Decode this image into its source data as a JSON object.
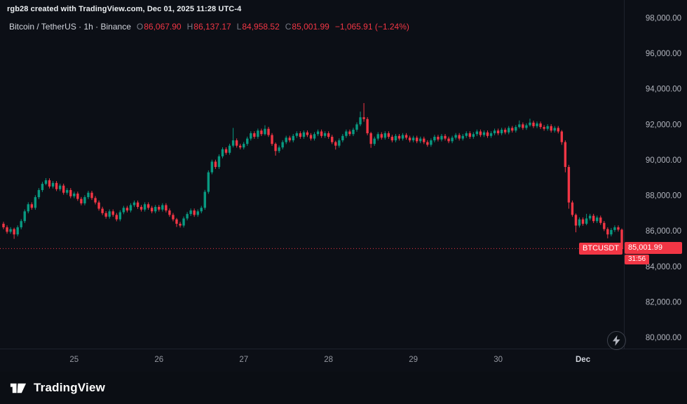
{
  "watermark": "rgb28 created with TradingView.com, Dec 01, 2025 11:28 UTC-4",
  "legend": {
    "title": "Bitcoin / TetherUS · 1h · Binance",
    "ohlc": [
      {
        "label": "O",
        "value": "86,067.90"
      },
      {
        "label": "H",
        "value": "86,137.17"
      },
      {
        "label": "L",
        "value": "84,958.52"
      },
      {
        "label": "C",
        "value": "85,001.99"
      }
    ],
    "change": "−1,065.91 (−1.24%)"
  },
  "price_tag": {
    "symbol": "BTCUSDT",
    "price": "85,001.99",
    "countdown": "31:56",
    "value": 85001.99
  },
  "price_scale": {
    "ticks": [
      {
        "value": 98000,
        "label": "98,000.00"
      },
      {
        "value": 96000,
        "label": "96,000.00"
      },
      {
        "value": 94000,
        "label": "94,000.00"
      },
      {
        "value": 92000,
        "label": "92,000.00"
      },
      {
        "value": 90000,
        "label": "90,000.00"
      },
      {
        "value": 88000,
        "label": "88,000.00"
      },
      {
        "value": 86000,
        "label": "86,000.00"
      },
      {
        "value": 84000,
        "label": "84,000.00"
      },
      {
        "value": 82000,
        "label": "82,000.00"
      },
      {
        "value": 80000,
        "label": "80,000.00"
      }
    ]
  },
  "time_scale": {
    "labels": [
      {
        "text": "25",
        "index": 20,
        "major": false
      },
      {
        "text": "26",
        "index": 44,
        "major": false
      },
      {
        "text": "27",
        "index": 68,
        "major": false
      },
      {
        "text": "28",
        "index": 92,
        "major": false
      },
      {
        "text": "29",
        "index": 116,
        "major": false
      },
      {
        "text": "30",
        "index": 140,
        "major": false
      },
      {
        "text": "Dec",
        "index": 164,
        "major": true
      }
    ]
  },
  "footer": {
    "brand": "TradingView"
  },
  "colors": {
    "up": "#089981",
    "down": "#f23645",
    "text": "#b2b5be",
    "text_dim": "#9598a1",
    "text_bright": "#d1d4dc",
    "divider": "#1e222d",
    "bg": "#0c0f16"
  },
  "chart_data": {
    "type": "candlestick",
    "symbol": "BTCUSDT",
    "exchange": "Binance",
    "interval": "1h",
    "ylim": [
      79400,
      99000
    ],
    "legend_position": "top-left",
    "grid": false,
    "first_open": 86400,
    "default_wick": 110,
    "closes": [
      86200,
      85950,
      86100,
      85800,
      86200,
      86550,
      87100,
      87500,
      87300,
      87900,
      88300,
      88650,
      88850,
      88500,
      88700,
      88350,
      88550,
      88150,
      88300,
      87950,
      88100,
      87800,
      87550,
      87900,
      88150,
      87850,
      87600,
      87250,
      87000,
      86800,
      87100,
      86900,
      86650,
      87050,
      87300,
      87150,
      87450,
      87600,
      87350,
      87200,
      87500,
      87300,
      87100,
      87350,
      87200,
      87450,
      87150,
      86900,
      86650,
      86400,
      86300,
      86700,
      86950,
      87150,
      86900,
      87100,
      87300,
      88200,
      89300,
      89900,
      89600,
      90200,
      90600,
      90400,
      90800,
      91100,
      90800,
      90700,
      90900,
      91200,
      91500,
      91300,
      91650,
      91450,
      91750,
      91400,
      90900,
      90500,
      90700,
      91000,
      91250,
      91100,
      91350,
      91500,
      91300,
      91550,
      91400,
      91200,
      91450,
      91600,
      91350,
      91500,
      91300,
      91000,
      90800,
      91100,
      91350,
      91600,
      91450,
      91700,
      92000,
      92400,
      92300,
      91500,
      90900,
      91200,
      91450,
      91250,
      91500,
      91300,
      91100,
      91350,
      91200,
      91400,
      91250,
      91100,
      91250,
      91050,
      91200,
      91000,
      90850,
      91100,
      91300,
      91150,
      91350,
      91200,
      91050,
      91250,
      91400,
      91200,
      91350,
      91500,
      91300,
      91450,
      91600,
      91400,
      91550,
      91350,
      91500,
      91650,
      91500,
      91700,
      91550,
      91800,
      91650,
      91850,
      92000,
      91800,
      91950,
      92100,
      91900,
      92050,
      91850,
      91750,
      91900,
      91650,
      91800,
      91600,
      91000,
      89600,
      87600,
      86900,
      86300,
      86650,
      86400,
      86700,
      86850,
      86550,
      86750,
      86450,
      86100,
      85800,
      86050,
      86200,
      86068,
      85001.99
    ],
    "wick_overrides": {
      "3": [
        80,
        250
      ],
      "12": [
        120,
        80
      ],
      "49": [
        80,
        180
      ],
      "65": [
        700,
        100
      ],
      "74": [
        200,
        80
      ],
      "77": [
        80,
        260
      ],
      "94": [
        80,
        220
      ],
      "101": [
        320,
        100
      ],
      "102": [
        800,
        150
      ],
      "104": [
        80,
        220
      ],
      "146": [
        220,
        80
      ],
      "149": [
        220,
        80
      ],
      "158": [
        80,
        150
      ],
      "159": [
        100,
        300
      ],
      "160": [
        120,
        350
      ],
      "162": [
        80,
        380
      ],
      "165": [
        260,
        80
      ],
      "171": [
        100,
        220
      ]
    },
    "last_candle": {
      "open": 86067.9,
      "high": 86137.17,
      "low": 84958.52,
      "close": 85001.99
    }
  }
}
